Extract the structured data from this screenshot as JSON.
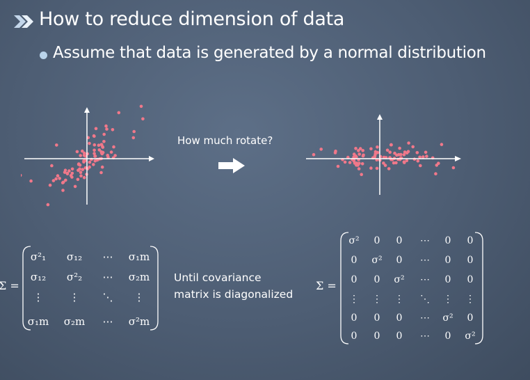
{
  "slide": {
    "title": "How to reduce dimension of data",
    "bullet": "Assume that data is generated by a normal distribution",
    "rotate_label": "How much rotate?",
    "until_line1": "Until covariance",
    "until_line2": "matrix is diagonalized"
  },
  "matrix_left": {
    "symbol": "Σ =",
    "rows": [
      [
        "σ²₁",
        "σ₁₂",
        "⋯",
        "σ₁m"
      ],
      [
        "σ₁₂",
        "σ²₂",
        "⋯",
        "σ₂m"
      ],
      [
        "⋮",
        "⋮",
        "⋱",
        "⋮"
      ],
      [
        "σ₁m",
        "σ₂m",
        "⋯",
        "σ²m"
      ]
    ]
  },
  "matrix_right": {
    "symbol": "Σ =",
    "rows": [
      [
        "σ²",
        "0",
        "0",
        "⋯",
        "0",
        "0"
      ],
      [
        "0",
        "σ²",
        "0",
        "⋯",
        "0",
        "0"
      ],
      [
        "0",
        "0",
        "σ²",
        "⋯",
        "0",
        "0"
      ],
      [
        "⋮",
        "⋮",
        "⋮",
        "⋱",
        "⋮",
        "⋮"
      ],
      [
        "0",
        "0",
        "0",
        "⋯",
        "σ²",
        "0"
      ],
      [
        "0",
        "0",
        "0",
        "⋯",
        "0",
        "σ²"
      ]
    ]
  },
  "colors": {
    "background": "#4d5d73",
    "text": "#ffffff",
    "points": "#f0788a",
    "bullet": "#b9d3ea"
  },
  "icons": {
    "title_marker": "double-chevron-right-icon",
    "rotate_arrow": "arrow-right-icon"
  }
}
